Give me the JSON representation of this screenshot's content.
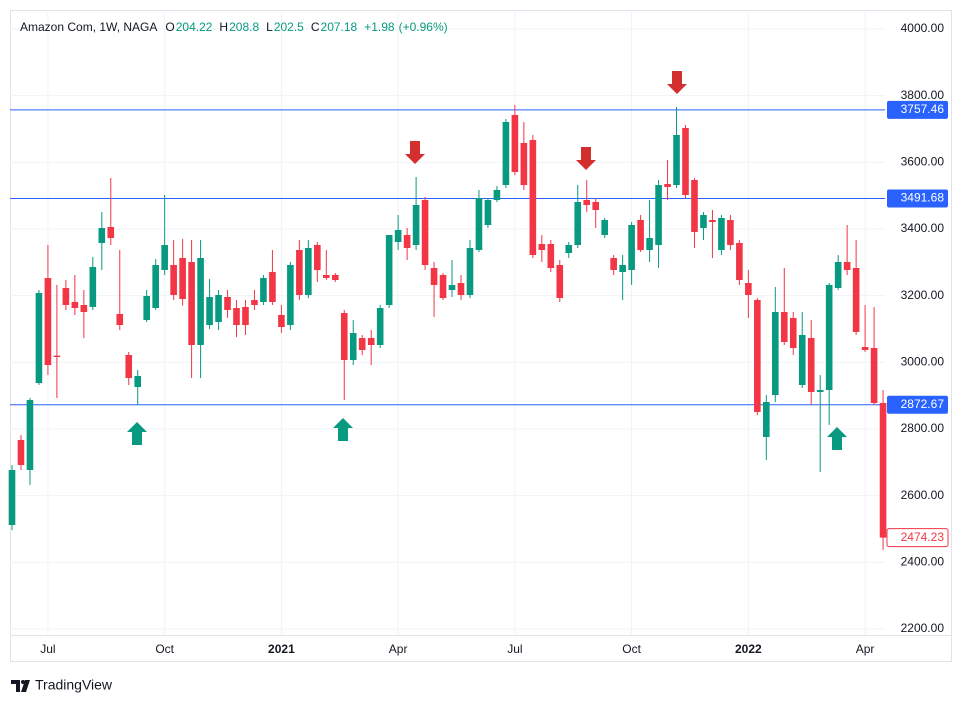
{
  "chart_data": {
    "type": "candlestick",
    "title": "Amazon Com, 1W, NAGA",
    "legend": [
      {
        "label": "O",
        "value": 204.22
      },
      {
        "label": "H",
        "value": 208.8
      },
      {
        "label": "L",
        "value": 202.5
      },
      {
        "label": "C",
        "value": 207.18
      }
    ],
    "change": {
      "value": 1.98,
      "label": "+1.98"
    },
    "change_pct": {
      "value": 0.96,
      "label": "(+0.96%)"
    },
    "up_color": "#089981",
    "down_color": "#f23645",
    "categories": [
      null,
      null,
      null,
      null,
      "Jul",
      null,
      null,
      null,
      null,
      null,
      null,
      null,
      null,
      null,
      null,
      null,
      null,
      "Oct",
      null,
      null,
      null,
      null,
      null,
      null,
      null,
      null,
      null,
      null,
      null,
      null,
      {
        "value": "2021",
        "label": "2021",
        "bold": true
      },
      null,
      null,
      null,
      null,
      null,
      null,
      null,
      null,
      null,
      null,
      null,
      null,
      "Apr",
      null,
      null,
      null,
      null,
      null,
      null,
      null,
      null,
      null,
      null,
      null,
      null,
      "Jul",
      null,
      null,
      null,
      null,
      null,
      null,
      null,
      null,
      null,
      null,
      null,
      null,
      "Oct",
      null,
      null,
      null,
      null,
      null,
      null,
      null,
      null,
      null,
      null,
      null,
      null,
      {
        "value": "2022",
        "label": "2022",
        "bold": true
      },
      null,
      null,
      null,
      null,
      null,
      null,
      null,
      null,
      null,
      null,
      null,
      null,
      "Apr",
      null,
      null
    ],
    "open": [
      2512,
      2767,
      2677,
      2938,
      3253,
      3020,
      3223,
      3181,
      3172,
      3166,
      3358,
      3406,
      3145,
      3022,
      2926,
      3127,
      3163,
      3277,
      3292,
      3313,
      3301,
      3052,
      3112,
      3121,
      3196,
      3163,
      3166,
      3187,
      3181,
      3271,
      3142,
      3112,
      3337,
      3202,
      3352,
      3262,
      3262,
      3148,
      3007,
      3073,
      3073,
      3052,
      3172,
      3361,
      3382,
      3352,
      3487,
      3283,
      3262,
      3217,
      3238,
      3202,
      3337,
      3412,
      3487,
      3532,
      3742,
      3658,
      3667,
      3355,
      3355,
      3292,
      3328,
      3352,
      3487,
      3481,
      3382,
      3313,
      3271,
      3277,
      3427,
      3337,
      3352,
      3535,
      3532,
      3703,
      3547,
      3403,
      3427,
      3337,
      3427,
      3358,
      3238,
      3187,
      2776,
      2902,
      3151,
      3133,
      2932,
      3073,
      2911,
      2917,
      3223,
      3301,
      3283,
      3046,
      3043,
      2878
    ],
    "high": [
      2692,
      2782,
      2893,
      3217,
      3352,
      3232,
      3247,
      3262,
      3217,
      3316,
      3451,
      3553,
      3337,
      3031,
      2977,
      3217,
      3310,
      3502,
      3367,
      3370,
      3367,
      3367,
      3250,
      3217,
      3217,
      3187,
      3187,
      3217,
      3262,
      3337,
      3172,
      3301,
      3367,
      3367,
      3361,
      3337,
      3268,
      3157,
      3127,
      3082,
      3097,
      3172,
      3382,
      3442,
      3403,
      3556,
      3496,
      3301,
      3268,
      3307,
      3262,
      3367,
      3517,
      3493,
      3529,
      3730,
      3772,
      3721,
      3682,
      3382,
      3367,
      3307,
      3361,
      3532,
      3547,
      3493,
      3433,
      3322,
      3322,
      3421,
      3442,
      3487,
      3547,
      3607,
      3766,
      3712,
      3553,
      3451,
      3457,
      3442,
      3442,
      3367,
      3277,
      3193,
      2902,
      3226,
      3283,
      3151,
      3151,
      3127,
      2962,
      3238,
      3322,
      3412,
      3367,
      3172,
      3166,
      2917
    ],
    "low": [
      2497,
      2677,
      2632,
      2932,
      2962,
      2893,
      3157,
      3142,
      3073,
      3157,
      3277,
      3352,
      3097,
      2932,
      2872,
      3121,
      3157,
      3262,
      3187,
      3170,
      2953,
      2953,
      3100,
      3097,
      3133,
      3076,
      3082,
      3157,
      3172,
      3172,
      3088,
      3097,
      3187,
      3193,
      3241,
      3247,
      3241,
      2887,
      2992,
      3022,
      2992,
      3043,
      3163,
      3337,
      3307,
      3337,
      3277,
      3136,
      3187,
      3196,
      3187,
      3193,
      3331,
      3403,
      3481,
      3523,
      3562,
      3517,
      3313,
      3301,
      3271,
      3181,
      3313,
      3343,
      3451,
      3403,
      3373,
      3262,
      3187,
      3232,
      3331,
      3301,
      3283,
      3487,
      3523,
      3493,
      3343,
      3367,
      3313,
      3322,
      3337,
      3232,
      3133,
      2842,
      2707,
      2881,
      3052,
      3022,
      2923,
      2872,
      2671,
      2812,
      3217,
      3262,
      3082,
      3031,
      2872,
      2437
    ],
    "close": [
      2677,
      2692,
      2887,
      3208,
      2992,
      3016,
      3172,
      3163,
      3151,
      3286,
      3403,
      3373,
      3112,
      2953,
      2959,
      3199,
      3292,
      3352,
      3202,
      3190,
      3052,
      3313,
      3196,
      3202,
      3157,
      3112,
      3112,
      3172,
      3253,
      3181,
      3106,
      3292,
      3202,
      3343,
      3277,
      3253,
      3247,
      3007,
      3088,
      3037,
      3052,
      3163,
      3382,
      3397,
      3343,
      3472,
      3292,
      3232,
      3193,
      3232,
      3202,
      3343,
      3493,
      3487,
      3517,
      3721,
      3571,
      3532,
      3322,
      3337,
      3283,
      3193,
      3352,
      3481,
      3472,
      3457,
      3427,
      3277,
      3292,
      3412,
      3337,
      3373,
      3532,
      3526,
      3682,
      3502,
      3391,
      3442,
      3421,
      3433,
      3352,
      3247,
      3202,
      2851,
      2881,
      3151,
      3061,
      3043,
      3082,
      2911,
      2917,
      3232,
      3301,
      3277,
      3091,
      3037,
      2878,
      2474.23
    ],
    "price_lines": [
      {
        "value": 3757.46,
        "color": "#2962ff"
      },
      {
        "value": 3491.68,
        "color": "#2962ff"
      },
      {
        "value": 2872.67,
        "color": "#2962ff"
      }
    ],
    "ylim": [
      2182,
      4057
    ],
    "yticks": [
      {
        "value": 2200,
        "label": "2200.00"
      },
      {
        "value": 2400,
        "label": "2400.00"
      },
      {
        "value": 2600,
        "label": "2600.00"
      },
      {
        "value": 2800,
        "label": "2800.00"
      },
      {
        "value": 3000,
        "label": "3000.00"
      },
      {
        "value": 3200,
        "label": "3200.00"
      },
      {
        "value": 3400,
        "label": "3400.00"
      },
      {
        "value": 3600,
        "label": "3600.00"
      },
      {
        "value": 3800,
        "label": "3800.00"
      },
      {
        "value": 4000,
        "label": "4000.00"
      }
    ],
    "grid": true
  },
  "footer": {
    "brand": "TradingView"
  }
}
